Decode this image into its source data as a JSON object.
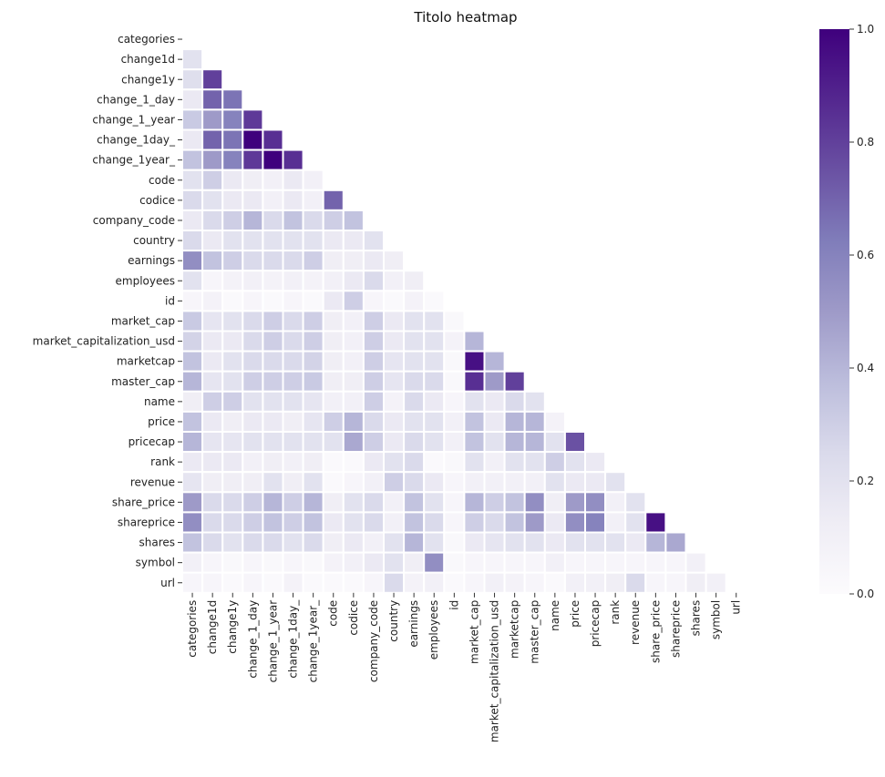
{
  "chart_data": {
    "type": "heatmap",
    "title": "Titolo heatmap",
    "xlabel": "",
    "ylabel": "",
    "colormap": "Purples",
    "color_low": "#fcfbfd",
    "color_high": "#3f007d",
    "vmin": 0.0,
    "vmax": 1.0,
    "mask": "upper-triangle-including-diagonal",
    "colorbar_ticks": [
      "0.0",
      "0.2",
      "0.4",
      "0.6",
      "0.8",
      "1.0"
    ],
    "labels": [
      "categories",
      "change1d",
      "change1y",
      "change_1_day",
      "change_1_year",
      "change_1day_",
      "change_1year_",
      "code",
      "codice",
      "company_code",
      "country",
      "earnings",
      "employees",
      "id",
      "market_cap",
      "market_capitalization_usd",
      "marketcap",
      "master_cap",
      "name",
      "price",
      "pricecap",
      "rank",
      "revenue",
      "share_price",
      "shareprice",
      "shares",
      "symbol",
      "url"
    ],
    "values": [
      [],
      [
        0.2
      ],
      [
        0.22,
        0.8
      ],
      [
        0.15,
        0.7,
        0.65
      ],
      [
        0.32,
        0.5,
        0.6,
        0.82
      ],
      [
        0.15,
        0.7,
        0.65,
        1.0,
        0.85
      ],
      [
        0.35,
        0.5,
        0.6,
        0.82,
        1.0,
        0.85
      ],
      [
        0.2,
        0.3,
        0.15,
        0.12,
        0.1,
        0.15,
        0.1
      ],
      [
        0.25,
        0.2,
        0.15,
        0.15,
        0.1,
        0.15,
        0.1,
        0.7
      ],
      [
        0.15,
        0.25,
        0.3,
        0.4,
        0.25,
        0.35,
        0.25,
        0.3,
        0.35
      ],
      [
        0.25,
        0.15,
        0.2,
        0.2,
        0.2,
        0.2,
        0.2,
        0.15,
        0.15,
        0.2
      ],
      [
        0.55,
        0.35,
        0.3,
        0.25,
        0.25,
        0.25,
        0.3,
        0.12,
        0.12,
        0.15,
        0.12
      ],
      [
        0.2,
        0.05,
        0.08,
        0.1,
        0.08,
        0.1,
        0.08,
        0.1,
        0.15,
        0.25,
        0.1,
        0.12
      ],
      [
        0.05,
        0.08,
        0.02,
        0.05,
        0.02,
        0.05,
        0.02,
        0.15,
        0.3,
        0.05,
        0.02,
        0.08,
        0.02
      ],
      [
        0.32,
        0.18,
        0.2,
        0.25,
        0.3,
        0.25,
        0.3,
        0.12,
        0.1,
        0.3,
        0.15,
        0.2,
        0.2,
        0.03
      ],
      [
        0.28,
        0.15,
        0.15,
        0.25,
        0.3,
        0.25,
        0.3,
        0.12,
        0.1,
        0.3,
        0.15,
        0.2,
        0.2,
        0.08,
        0.4
      ],
      [
        0.35,
        0.15,
        0.2,
        0.25,
        0.25,
        0.25,
        0.28,
        0.12,
        0.1,
        0.3,
        0.18,
        0.2,
        0.2,
        0.03,
        0.95,
        0.4
      ],
      [
        0.4,
        0.18,
        0.2,
        0.3,
        0.3,
        0.3,
        0.32,
        0.12,
        0.12,
        0.3,
        0.18,
        0.25,
        0.25,
        0.03,
        0.85,
        0.5,
        0.8
      ],
      [
        0.12,
        0.3,
        0.3,
        0.2,
        0.2,
        0.2,
        0.18,
        0.1,
        0.1,
        0.3,
        0.08,
        0.25,
        0.15,
        0.05,
        0.2,
        0.15,
        0.25,
        0.2
      ],
      [
        0.35,
        0.15,
        0.12,
        0.15,
        0.15,
        0.12,
        0.18,
        0.3,
        0.4,
        0.25,
        0.15,
        0.2,
        0.2,
        0.1,
        0.35,
        0.15,
        0.4,
        0.4,
        0.08
      ],
      [
        0.4,
        0.18,
        0.18,
        0.2,
        0.2,
        0.2,
        0.2,
        0.2,
        0.45,
        0.3,
        0.15,
        0.25,
        0.2,
        0.1,
        0.35,
        0.2,
        0.4,
        0.4,
        0.2,
        0.75
      ],
      [
        0.15,
        0.15,
        0.15,
        0.1,
        0.12,
        0.1,
        0.12,
        0.02,
        0.02,
        0.15,
        0.2,
        0.25,
        0.02,
        0.03,
        0.2,
        0.1,
        0.2,
        0.2,
        0.3,
        0.2,
        0.15
      ],
      [
        0.18,
        0.12,
        0.12,
        0.12,
        0.2,
        0.12,
        0.2,
        0.02,
        0.05,
        0.1,
        0.3,
        0.25,
        0.15,
        0.05,
        0.1,
        0.1,
        0.1,
        0.1,
        0.2,
        0.15,
        0.15,
        0.2
      ],
      [
        0.5,
        0.25,
        0.25,
        0.3,
        0.4,
        0.3,
        0.4,
        0.12,
        0.2,
        0.25,
        0.1,
        0.35,
        0.2,
        0.05,
        0.4,
        0.3,
        0.35,
        0.55,
        0.12,
        0.5,
        0.55,
        0.1,
        0.2
      ],
      [
        0.55,
        0.25,
        0.25,
        0.3,
        0.35,
        0.3,
        0.35,
        0.15,
        0.2,
        0.25,
        0.1,
        0.35,
        0.25,
        0.05,
        0.3,
        0.25,
        0.35,
        0.5,
        0.15,
        0.55,
        0.6,
        0.1,
        0.2,
        0.95
      ],
      [
        0.35,
        0.25,
        0.2,
        0.25,
        0.25,
        0.2,
        0.25,
        0.12,
        0.15,
        0.1,
        0.2,
        0.4,
        0.2,
        0.03,
        0.15,
        0.18,
        0.2,
        0.2,
        0.15,
        0.2,
        0.2,
        0.2,
        0.15,
        0.4,
        0.45
      ],
      [
        0.1,
        0.05,
        0.03,
        0.05,
        0.03,
        0.05,
        0.03,
        0.08,
        0.1,
        0.15,
        0.2,
        0.12,
        0.55,
        0.03,
        0.05,
        0.05,
        0.05,
        0.05,
        0.1,
        0.05,
        0.05,
        0.05,
        0.05,
        0.05,
        0.05,
        0.1
      ],
      [
        0.05,
        0.05,
        0.02,
        0.05,
        0.02,
        0.08,
        0.02,
        0.02,
        0.02,
        0.05,
        0.25,
        0.08,
        0.1,
        0.02,
        0.05,
        0.1,
        0.08,
        0.05,
        0.02,
        0.1,
        0.1,
        0.12,
        0.25,
        0.05,
        0.05,
        0.12,
        0.1
      ]
    ]
  }
}
